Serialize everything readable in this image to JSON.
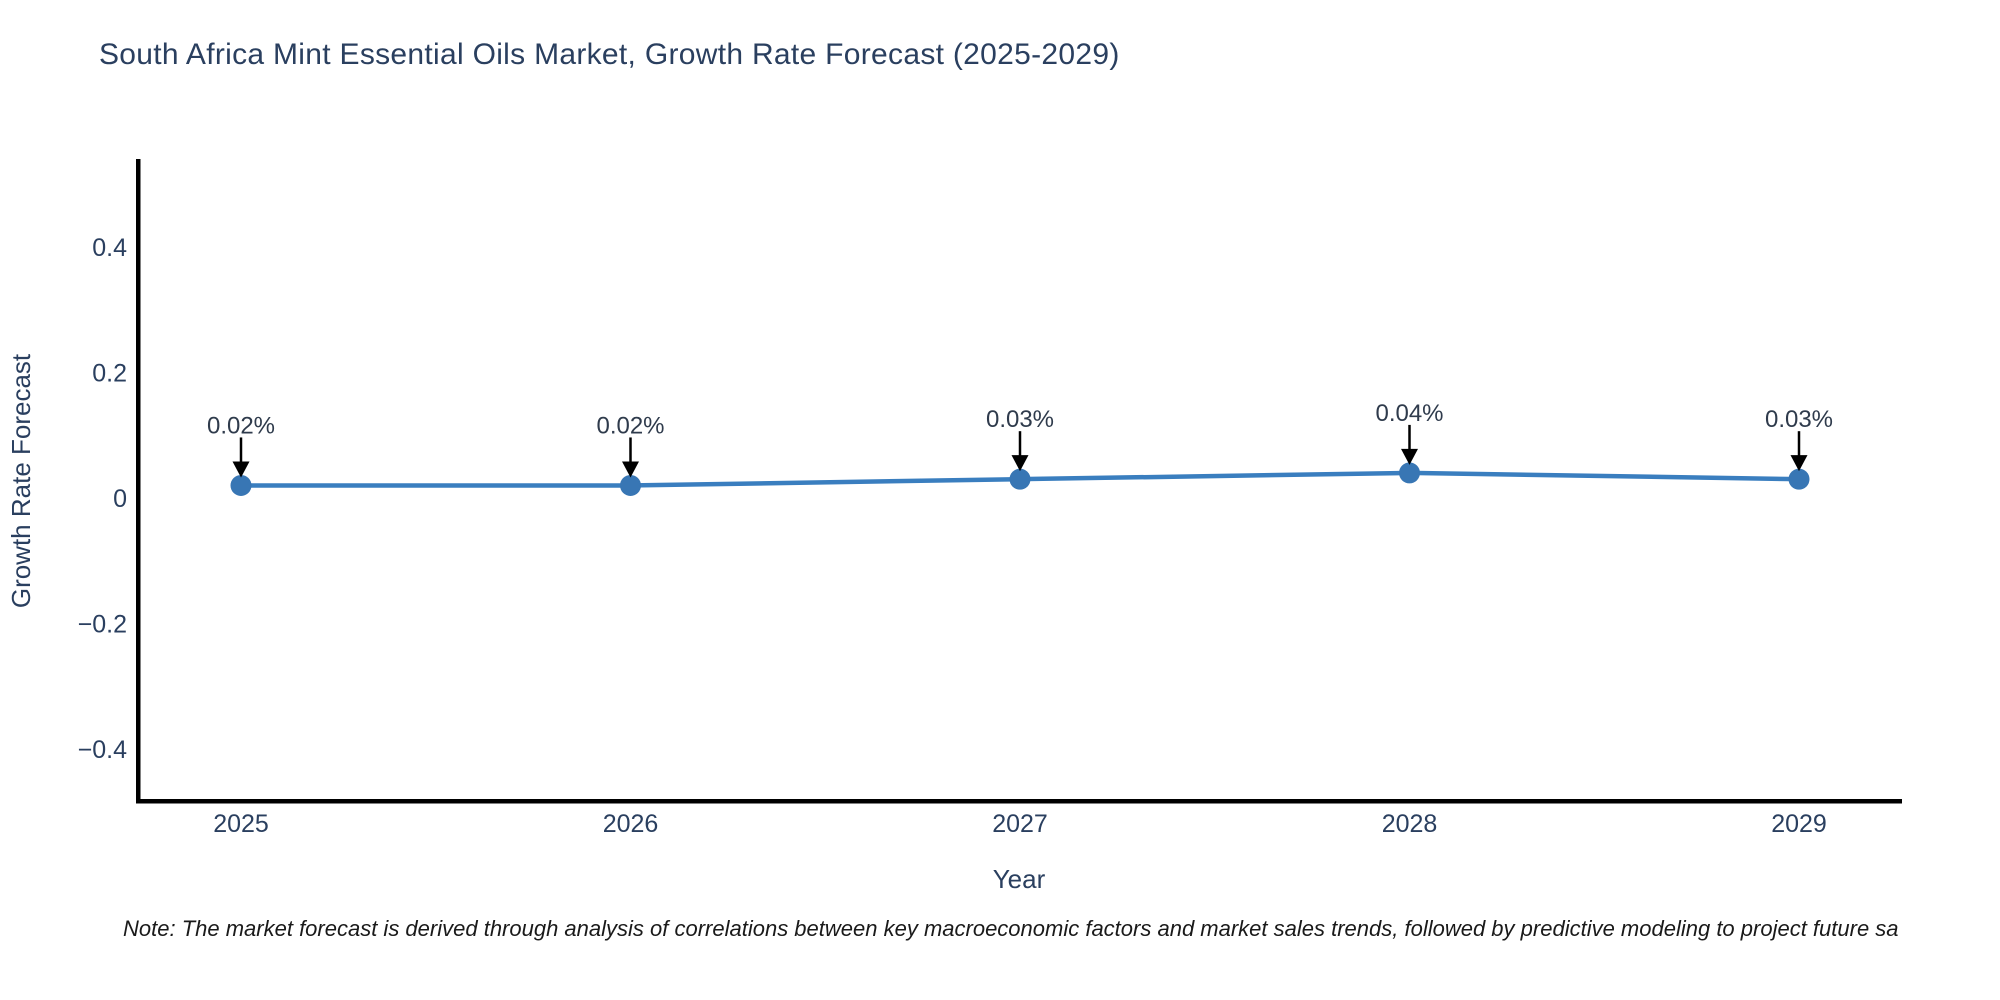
{
  "chart_data": {
    "type": "line",
    "title": "South Africa Mint Essential Oils Market, Growth Rate Forecast (2025-2029)",
    "x": [
      2025,
      2026,
      2027,
      2028,
      2029
    ],
    "x_tick_labels": [
      "2025",
      "2026",
      "2027",
      "2028",
      "2029"
    ],
    "series": [
      {
        "name": "Growth Rate Forecast",
        "values": [
          0.02,
          0.02,
          0.03,
          0.04,
          0.03
        ]
      }
    ],
    "point_labels": [
      "0.02%",
      "0.02%",
      "0.03%",
      "0.04%",
      "0.03%"
    ],
    "xlabel": "Year",
    "ylabel": "Growth Rate Forecast",
    "y_ticks": [
      0.4,
      0.2,
      0,
      -0.2,
      -0.4
    ],
    "y_tick_labels": [
      "0.4",
      "0.2",
      "0",
      "−0.2",
      "−0.4"
    ],
    "ylim": [
      -0.49,
      0.54
    ],
    "grid": false,
    "legend": "none",
    "line_color": "#3a7ebf",
    "marker_color": "#3876b4",
    "axis_color": "#000000",
    "text_color": "#2a3f5f",
    "annotation_text_color": "#2f3b4c",
    "arrow_color": "#000000"
  },
  "note": {
    "text": "Note: The market forecast is derived through analysis of correlations between key macroeconomic factors and market sales trends, followed by predictive modeling to project future sa",
    "color": "#1a1a1a"
  }
}
